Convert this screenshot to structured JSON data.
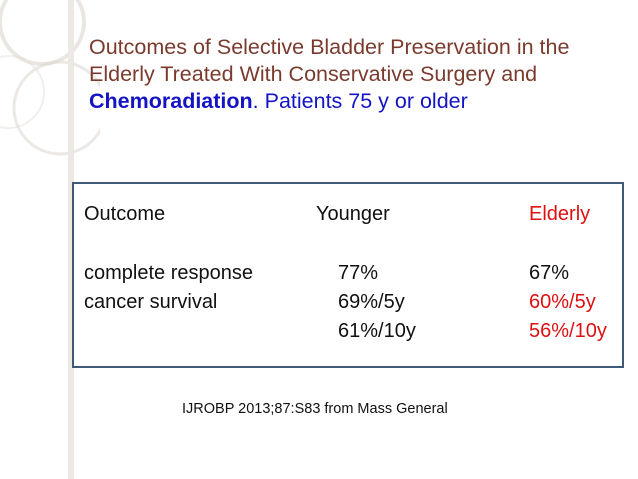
{
  "slide": {
    "title": {
      "part1": "Outcomes of Selective Bladder Preservation in the Elderly Treated With Conservative Surgery and ",
      "emphasis": "Chemoradiation",
      "part2": ". Patients 75 y or older"
    },
    "table": {
      "headers": [
        "Outcome",
        "Younger",
        "Elderly"
      ],
      "rows": [
        {
          "outcome": "complete response",
          "younger": "77%",
          "elderly": "67%"
        },
        {
          "outcome": "cancer survival",
          "younger": "69%/5y",
          "elderly": "60%/5y"
        },
        {
          "outcome": "",
          "younger": "61%/10y",
          "elderly": "56%/10y"
        }
      ]
    },
    "citation": "IJROBP 2013;87:S83 from Mass General"
  },
  "colors": {
    "title": "#7a3b2e",
    "emphasis": "#1414c4",
    "elderly_highlight": "#dd1111",
    "table_border": "#3f5977"
  }
}
